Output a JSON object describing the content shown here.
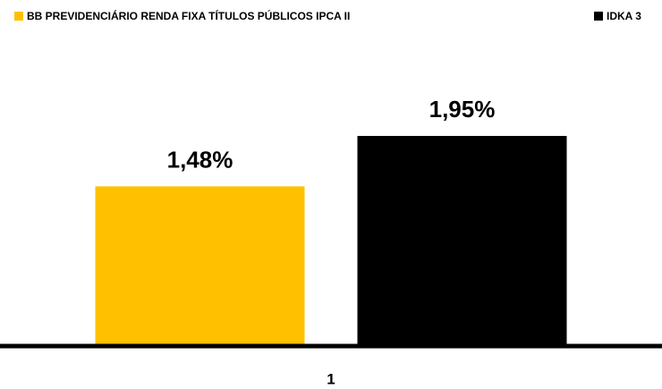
{
  "chart_data": {
    "type": "bar",
    "categories": [
      "1"
    ],
    "series": [
      {
        "name": "BB PREVIDENCIÁRIO RENDA FIXA TÍTULOS PÚBLICOS IPCA II",
        "color": "#ffc000",
        "values": [
          1.48
        ],
        "value_labels": [
          "1,48%"
        ]
      },
      {
        "name": "IDKA 3",
        "color": "#000000",
        "values": [
          1.95
        ],
        "value_labels": [
          "1,95%"
        ]
      }
    ],
    "ylim": [
      0,
      2
    ]
  }
}
